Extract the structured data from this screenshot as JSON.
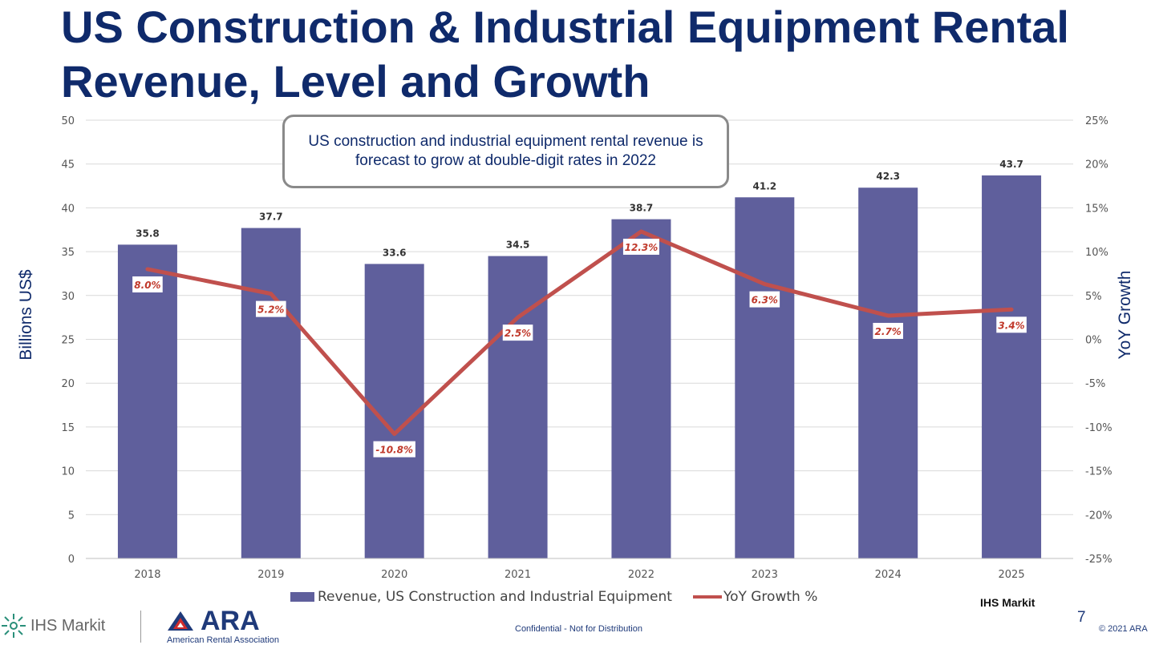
{
  "slide": {
    "title": "US Construction & Industrial Equipment Rental Revenue, Level and Growth",
    "callout": "US construction and industrial equipment rental revenue is forecast to grow at double-digit rates in 2022",
    "source": "IHS Markit",
    "page_number": "7",
    "confidential": "Confidential - Not for Distribution",
    "copyright": "© 2021 ARA"
  },
  "logos": {
    "ihs_markit": "IHS Markit",
    "ara": "ARA",
    "ara_full": "American Rental Association"
  },
  "colors": {
    "title": "#0f2a6b",
    "bar": "#5f5f9c",
    "line": "#c0504d",
    "grid": "#d9d9d9"
  },
  "chart_data": {
    "type": "bar",
    "categories": [
      "2018",
      "2019",
      "2020",
      "2021",
      "2022",
      "2023",
      "2024",
      "2025"
    ],
    "series": [
      {
        "name": "Revenue, US Construction and Industrial Equipment",
        "type": "bar",
        "axis": "left",
        "values": [
          35.8,
          37.7,
          33.6,
          34.5,
          38.7,
          41.2,
          42.3,
          43.7
        ],
        "labels": [
          "35.8",
          "37.7",
          "33.6",
          "34.5",
          "38.7",
          "41.2",
          "42.3",
          "43.7"
        ]
      },
      {
        "name": "YoY Growth %",
        "type": "line",
        "axis": "right",
        "values": [
          8.0,
          5.2,
          -10.8,
          2.5,
          12.3,
          6.3,
          2.7,
          3.4
        ],
        "labels": [
          "8.0%",
          "5.2%",
          "-10.8%",
          "2.5%",
          "12.3%",
          "6.3%",
          "2.7%",
          "3.4%"
        ]
      }
    ],
    "ylabel": "Billions US$",
    "y2label": "YoY Growth",
    "ylim": [
      0,
      50
    ],
    "y2lim": [
      -25,
      25
    ],
    "yticks": [
      "0",
      "5",
      "10",
      "15",
      "20",
      "25",
      "30",
      "35",
      "40",
      "45",
      "50"
    ],
    "y2ticks": [
      "-25%",
      "-20%",
      "-15%",
      "-10%",
      "-5%",
      "0%",
      "5%",
      "10%",
      "15%",
      "20%",
      "25%"
    ],
    "grid": true,
    "legend_position": "bottom"
  }
}
